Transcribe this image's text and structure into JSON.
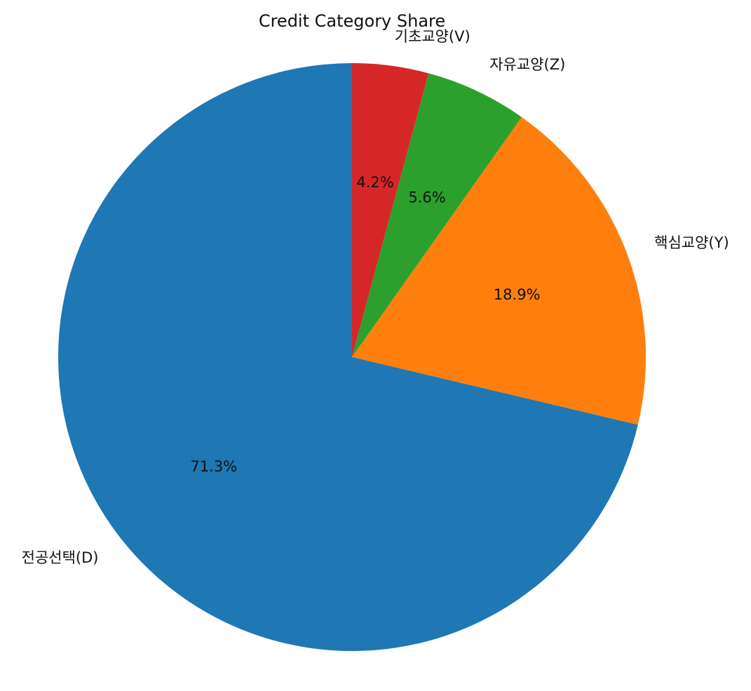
{
  "chart_data": {
    "type": "pie",
    "title": "Credit Category Share",
    "start_angle": 90,
    "direction": "clockwise",
    "slices": [
      {
        "label": "기초교양(V)",
        "value": 4.2,
        "pct_label": "4.2%",
        "color": "#d62728"
      },
      {
        "label": "자유교양(Z)",
        "value": 5.6,
        "pct_label": "5.6%",
        "color": "#2ca02c"
      },
      {
        "label": "핵심교양(Y)",
        "value": 18.9,
        "pct_label": "18.9%",
        "color": "#ff7f0e"
      },
      {
        "label": "전공선택(D)",
        "value": 71.3,
        "pct_label": "71.3%",
        "color": "#1f77b4"
      }
    ]
  }
}
